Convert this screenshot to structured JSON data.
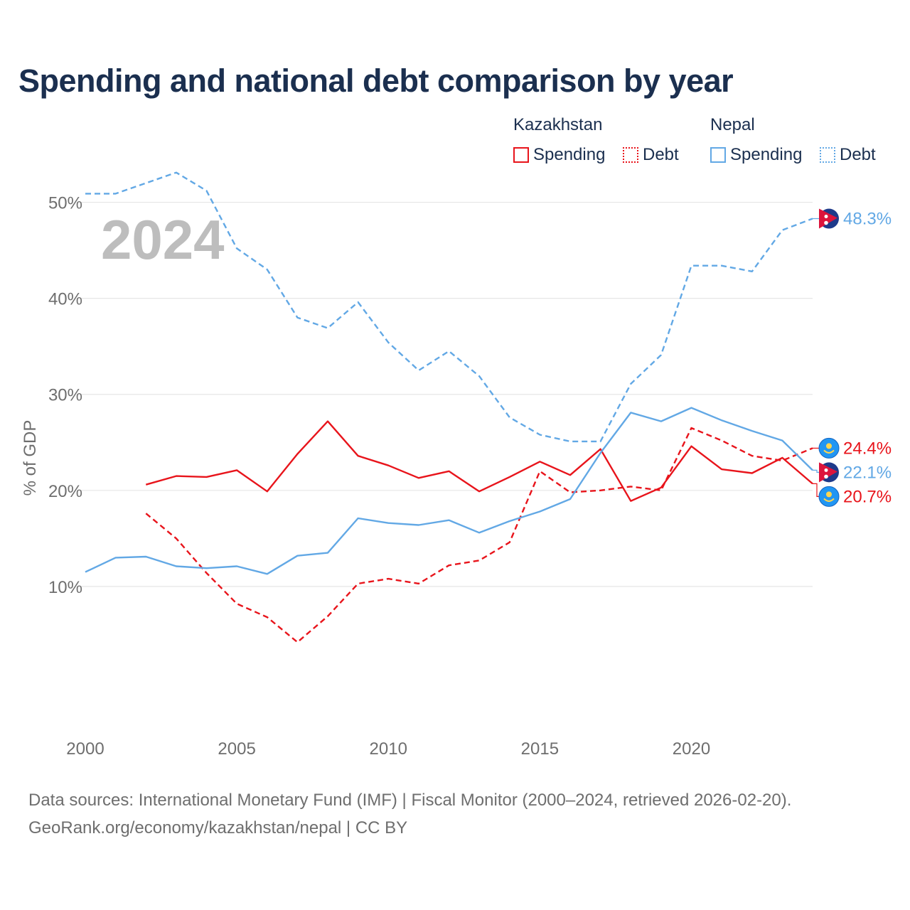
{
  "title": "Spending and national debt comparison by year",
  "legend": {
    "groups": [
      {
        "name": "Kazakhstan",
        "items": [
          {
            "label": "Spending",
            "style": "solid"
          },
          {
            "label": "Debt",
            "style": "dotted"
          }
        ]
      },
      {
        "name": "Nepal",
        "items": [
          {
            "label": "Spending",
            "style": "solid"
          },
          {
            "label": "Debt",
            "style": "dotted"
          }
        ]
      }
    ]
  },
  "colors": {
    "kazakhstan": "#e8141b",
    "nepal": "#62a8e5",
    "title": "#1b2f4f",
    "axis_text": "#6e6e6e",
    "grid": "#e6e6e6",
    "watermark": "#bdbdbd"
  },
  "footer": {
    "line1": "Data sources: International Monetary Fund (IMF) | Fiscal Monitor (2000–2024, retrieved 2026-02-20).",
    "line2": "GeoRank.org/economy/kazakhstan/nepal | CC BY"
  },
  "chart_data": {
    "type": "line",
    "title": "Spending and national debt comparison by year",
    "ylabel": "% of GDP",
    "xlabel": "",
    "watermark_year": "2024",
    "xlim": [
      2000,
      2024
    ],
    "ylim": [
      0,
      55
    ],
    "x_ticks": [
      2000,
      2005,
      2010,
      2015,
      2020
    ],
    "x_tick_labels": [
      "2000",
      "2005",
      "2010",
      "2015",
      "2020"
    ],
    "y_ticks": [
      10,
      20,
      30,
      40,
      50
    ],
    "y_tick_labels": [
      "10%",
      "20%",
      "30%",
      "40%",
      "50%"
    ],
    "grid": true,
    "series": [
      {
        "name": "Kazakhstan Spending",
        "country": "Kazakhstan",
        "metric": "Spending",
        "color": "#e8141b",
        "dash": "solid",
        "x": [
          2002,
          2003,
          2004,
          2005,
          2006,
          2007,
          2008,
          2009,
          2010,
          2011,
          2012,
          2013,
          2014,
          2015,
          2016,
          2017,
          2018,
          2019,
          2020,
          2021,
          2022,
          2023,
          2024
        ],
        "values": [
          20.6,
          21.5,
          21.4,
          22.1,
          19.9,
          23.8,
          27.2,
          23.6,
          22.6,
          21.3,
          22.0,
          19.9,
          21.4,
          23.0,
          21.6,
          24.3,
          18.9,
          20.3,
          24.6,
          22.2,
          21.8,
          23.4,
          20.7
        ],
        "end_label": "20.7%",
        "flag": "kazakhstan"
      },
      {
        "name": "Kazakhstan Debt",
        "country": "Kazakhstan",
        "metric": "Debt",
        "color": "#e8141b",
        "dash": "dashed",
        "x": [
          2002,
          2003,
          2004,
          2005,
          2006,
          2007,
          2008,
          2009,
          2010,
          2011,
          2012,
          2013,
          2014,
          2015,
          2016,
          2017,
          2018,
          2019,
          2020,
          2021,
          2022,
          2023,
          2024
        ],
        "values": [
          17.6,
          15.0,
          11.4,
          8.2,
          6.8,
          4.2,
          6.9,
          10.3,
          10.8,
          10.3,
          12.2,
          12.7,
          14.6,
          22.0,
          19.8,
          20.0,
          20.4,
          20.0,
          26.5,
          25.2,
          23.6,
          23.1,
          24.4
        ],
        "end_label": "24.4%",
        "flag": "kazakhstan"
      },
      {
        "name": "Nepal Spending",
        "country": "Nepal",
        "metric": "Spending",
        "color": "#62a8e5",
        "dash": "solid",
        "x": [
          2000,
          2001,
          2002,
          2003,
          2004,
          2005,
          2006,
          2007,
          2008,
          2009,
          2010,
          2011,
          2012,
          2013,
          2014,
          2015,
          2016,
          2017,
          2018,
          2019,
          2020,
          2021,
          2022,
          2023,
          2024
        ],
        "values": [
          11.5,
          13.0,
          13.1,
          12.1,
          11.9,
          12.1,
          11.3,
          13.2,
          13.5,
          17.1,
          16.6,
          16.4,
          16.9,
          15.6,
          16.8,
          17.8,
          19.1,
          23.9,
          28.1,
          27.2,
          28.6,
          27.3,
          26.2,
          25.2,
          22.1
        ],
        "end_label": "22.1%",
        "flag": "nepal"
      },
      {
        "name": "Nepal Debt",
        "country": "Nepal",
        "metric": "Debt",
        "color": "#62a8e5",
        "dash": "dashed",
        "x": [
          2000,
          2001,
          2002,
          2003,
          2004,
          2005,
          2006,
          2007,
          2008,
          2009,
          2010,
          2011,
          2012,
          2013,
          2014,
          2015,
          2016,
          2017,
          2018,
          2019,
          2020,
          2021,
          2022,
          2023,
          2024
        ],
        "values": [
          50.9,
          50.9,
          52.0,
          53.1,
          51.2,
          45.2,
          43.0,
          38.0,
          36.9,
          39.6,
          35.4,
          32.5,
          34.5,
          31.9,
          27.6,
          25.8,
          25.1,
          25.1,
          31.1,
          34.1,
          43.4,
          43.4,
          42.8,
          47.1,
          48.3
        ],
        "end_label": "48.3%",
        "flag": "nepal"
      }
    ]
  }
}
